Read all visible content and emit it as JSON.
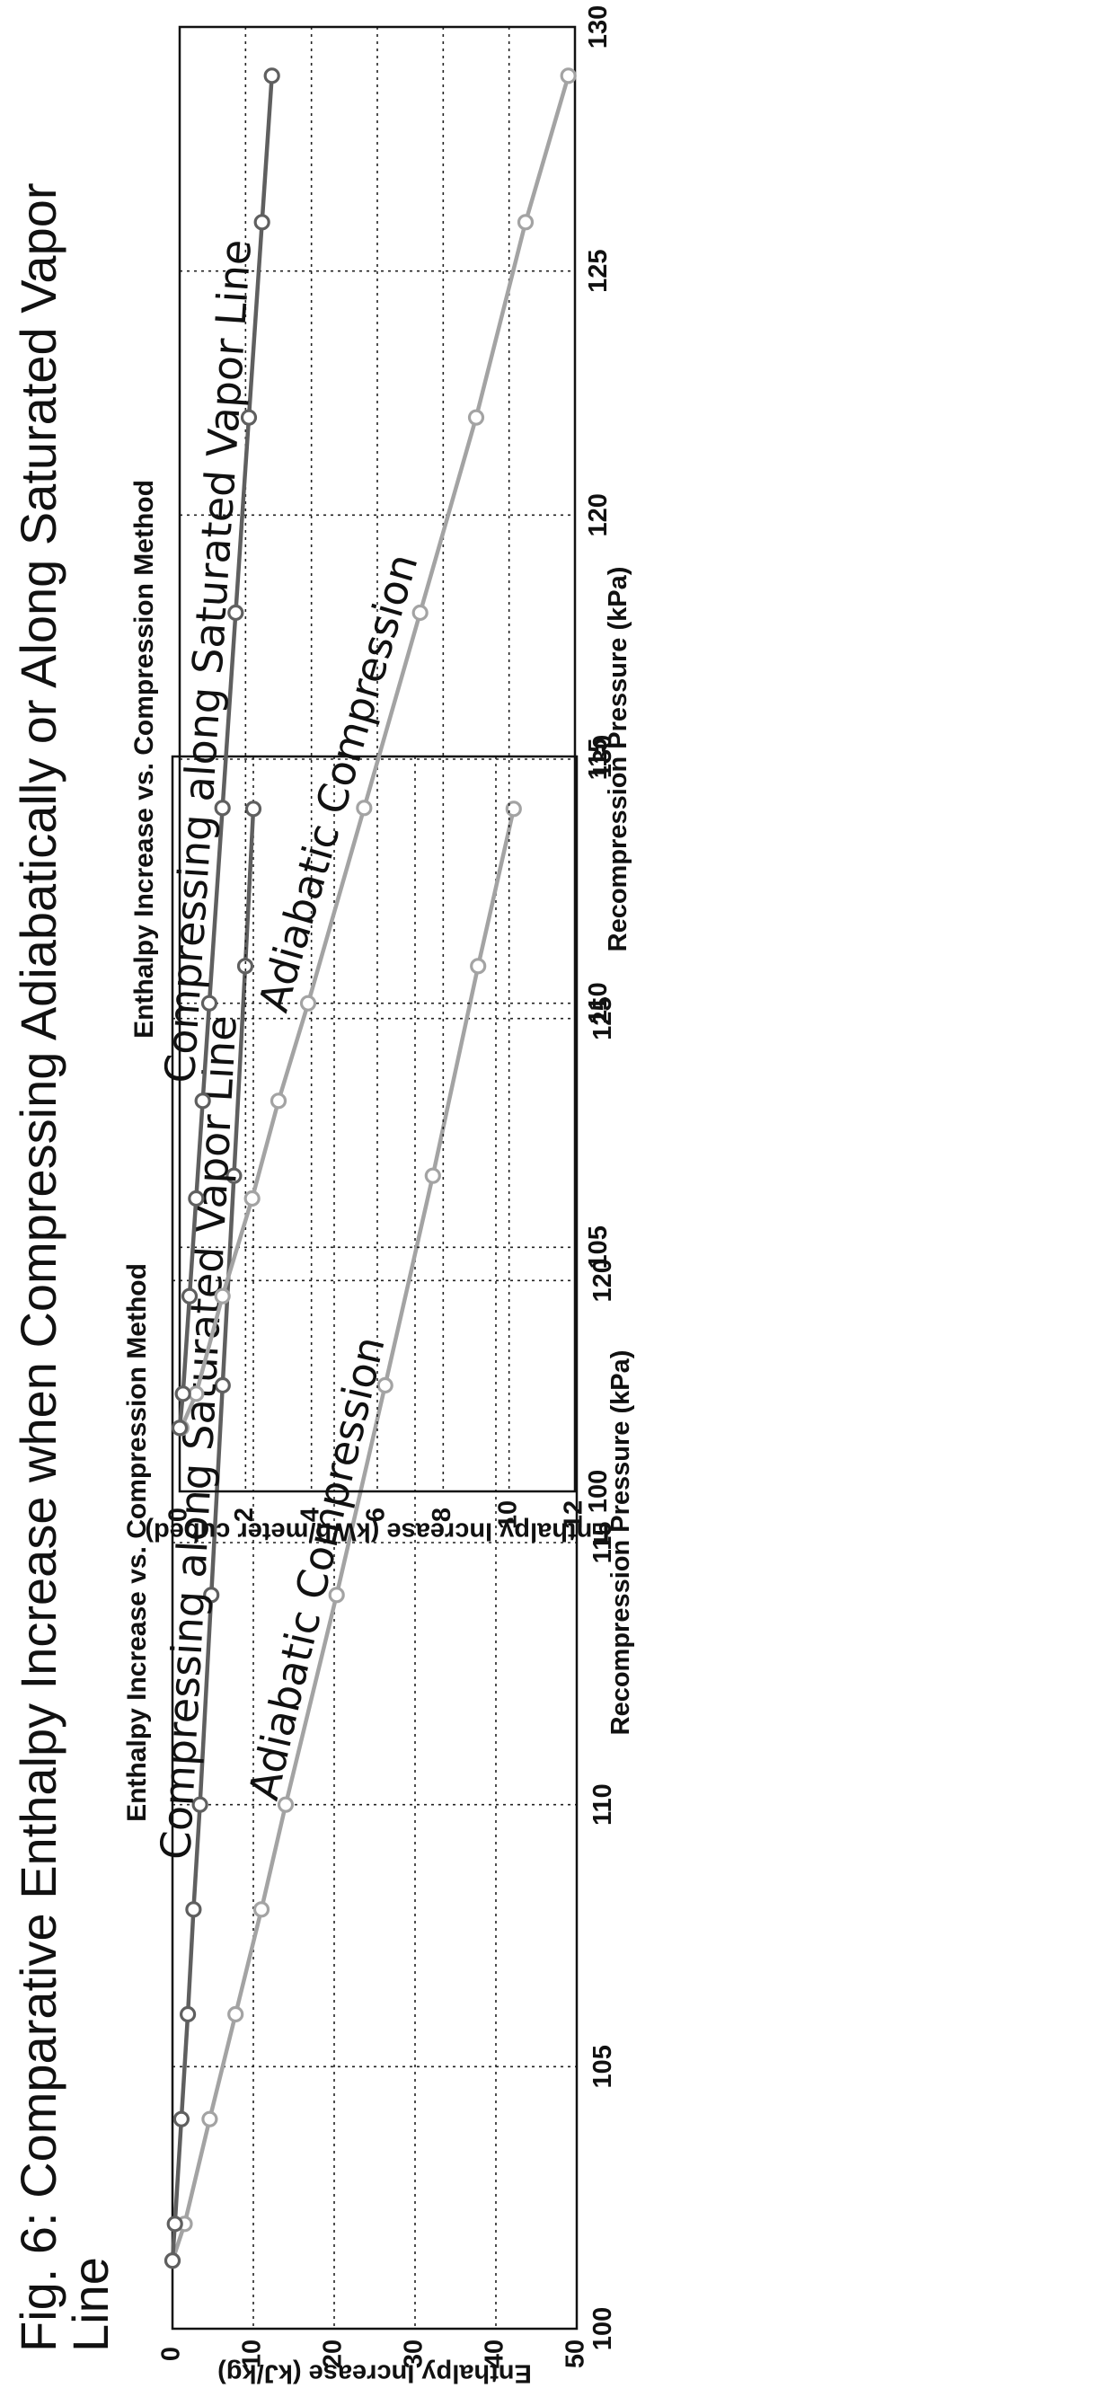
{
  "figure_title": "Fig. 6: Comparative Enthalpy Increase when Compressing Adiabatically or Along Saturated Vapor Line",
  "figure_title_lines": [
    "Fig. 6: Comparative Enthalpy Increase when Compressing Adiabatically or Along Saturated Vapor",
    "Line"
  ],
  "chart_data": [
    {
      "type": "line",
      "title": "Enthalpy Increase  vs. Compression Method",
      "xlabel": "Recompression Pressure (kPa)",
      "ylabel": "Enthalpy Increase  (kJ/kg)",
      "xlim": [
        100,
        130
      ],
      "ylim": [
        0,
        50
      ],
      "x_ticks": [
        100,
        105,
        110,
        115,
        120,
        125,
        130
      ],
      "y_ticks": [
        0,
        10,
        20,
        30,
        40,
        50
      ],
      "grid": true,
      "series": [
        {
          "name": "Adiabatic Compression",
          "color": "#a3a3a3",
          "x": [
            101.3,
            102,
            104,
            106,
            108,
            110,
            114,
            118,
            122,
            126,
            129
          ],
          "y": [
            0,
            1.5,
            4.6,
            7.8,
            11,
            14,
            20.3,
            26.3,
            32.2,
            37.8,
            42.2
          ]
        },
        {
          "name": "Compressing along Saturated Vapor Line",
          "color": "#5f5f5f",
          "x": [
            101.3,
            102,
            104,
            106,
            108,
            110,
            114,
            118,
            122,
            126,
            129
          ],
          "y": [
            0,
            0.3,
            1.1,
            1.9,
            2.6,
            3.4,
            4.8,
            6.2,
            7.6,
            9,
            10
          ]
        }
      ]
    },
    {
      "type": "line",
      "title": "Enthalpy Increase vs. Compression Method",
      "xlabel": "Recompression Pressure (kPa)",
      "ylabel": "Enthalpy Increase (kWh/meter cubed)",
      "xlim": [
        100,
        130
      ],
      "ylim": [
        0,
        12
      ],
      "x_ticks": [
        100,
        105,
        110,
        115,
        120,
        125,
        130
      ],
      "y_ticks": [
        0,
        2,
        4,
        6,
        8,
        10,
        12
      ],
      "grid": true,
      "series": [
        {
          "name": "Adiabatic Compression",
          "color": "#a3a3a3",
          "x": [
            101.3,
            102,
            104,
            106,
            108,
            110,
            114,
            118,
            122,
            126,
            129
          ],
          "y": [
            0.05,
            0.5,
            1.3,
            2.2,
            3.0,
            3.9,
            5.6,
            7.3,
            9.0,
            10.5,
            11.8
          ]
        },
        {
          "name": "Compressing along Saturated Vapor Line",
          "color": "#5f5f5f",
          "x": [
            101.3,
            102,
            104,
            106,
            108,
            110,
            114,
            118,
            122,
            126,
            129
          ],
          "y": [
            0,
            0.1,
            0.3,
            0.5,
            0.7,
            0.9,
            1.3,
            1.7,
            2.1,
            2.5,
            2.8
          ]
        }
      ]
    }
  ]
}
